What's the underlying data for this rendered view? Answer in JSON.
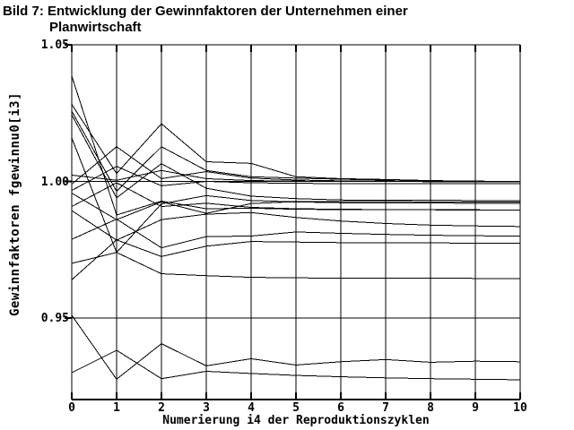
{
  "title": {
    "line1": "Bild 7: Entwicklung der Gewinnfaktoren der Unternehmen einer",
    "line2": "Planwirtschaft"
  },
  "colors": {
    "ink": "#000000",
    "background": "#ffffff"
  },
  "chart_data": {
    "type": "line",
    "title": "Bild 7: Entwicklung der Gewinnfaktoren der Unternehmen einer Planwirtschaft",
    "xlabel": "Numerierung i4 der Reproduktionszyklen",
    "ylabel": "Gewinnfaktoren fgewinnu0[i3]",
    "xlim": [
      0,
      10
    ],
    "ylim": [
      0.92,
      1.05
    ],
    "x": [
      0,
      1,
      2,
      3,
      4,
      5,
      6,
      7,
      8,
      9,
      10
    ],
    "x_tick_labels": [
      "0",
      "1",
      "2",
      "3",
      "4",
      "5",
      "6",
      "7",
      "8",
      "9",
      "10"
    ],
    "y_ticks": [
      {
        "value": 1.05,
        "label": "1.05"
      },
      {
        "value": 1.0,
        "label": "1.00"
      },
      {
        "value": 0.95,
        "label": "0.95"
      }
    ],
    "grid": "vertical gridline at every integer x; horizontal lines at y=1.00 and y=0.95; closed frame; no legend",
    "line_color": "#000000",
    "series": [
      {
        "name": "s1",
        "values": [
          1.0386,
          0.9877,
          0.9928,
          0.99,
          0.9902,
          0.9898,
          0.9897,
          0.9896,
          0.9896,
          0.9895,
          0.9895
        ]
      },
      {
        "name": "s2",
        "values": [
          1.0282,
          1.0029,
          1.0211,
          1.0072,
          1.0066,
          1.0017,
          1.001,
          1.0007,
          1.0003,
          1.0001,
          1.0
        ]
      },
      {
        "name": "s3",
        "values": [
          1.0257,
          0.9964,
          1.0127,
          1.004,
          1.0017,
          1.0012,
          1.0008,
          1.0005,
          1.0002,
          1.0,
          1.0
        ]
      },
      {
        "name": "s4",
        "values": [
          1.0244,
          0.994,
          1.0065,
          0.9975,
          0.9946,
          0.9937,
          0.9932,
          0.9931,
          0.9931,
          0.993,
          0.993
        ]
      },
      {
        "name": "s5",
        "values": [
          1.0159,
          0.974,
          0.9918,
          0.9948,
          0.993,
          0.9925,
          0.9922,
          0.9921,
          0.9921,
          0.992,
          0.992
        ]
      },
      {
        "name": "s6",
        "values": [
          1.0023,
          1.0004,
          1.004,
          1.001,
          1.0003,
          1.0001,
          1.0,
          1.0,
          0.9999,
          0.9999,
          0.9999
        ]
      },
      {
        "name": "s7",
        "values": [
          0.999,
          1.0127,
          1.001,
          1.0036,
          1.0012,
          1.0005,
          1.0002,
          1.0001,
          1.0,
          1.0,
          1.0
        ]
      },
      {
        "name": "s8",
        "values": [
          0.9967,
          1.0055,
          0.9984,
          1.0,
          0.9995,
          0.9993,
          0.9992,
          0.9992,
          0.9991,
          0.9991,
          0.9991
        ]
      },
      {
        "name": "s9",
        "values": [
          0.9957,
          0.986,
          0.9925,
          0.9883,
          0.9919,
          0.9926,
          0.9927,
          0.9926,
          0.9925,
          0.9925,
          0.9924
        ]
      },
      {
        "name": "s10",
        "values": [
          0.9908,
          0.9995,
          0.9908,
          0.992,
          0.9905,
          0.99,
          0.9898,
          0.9897,
          0.9896,
          0.9896,
          0.9895
        ]
      },
      {
        "name": "s11",
        "values": [
          0.9893,
          0.9785,
          0.986,
          0.988,
          0.9886,
          0.9868,
          0.9855,
          0.9846,
          0.984,
          0.9837,
          0.9835
        ]
      },
      {
        "name": "s12",
        "values": [
          0.9788,
          0.9862,
          0.9757,
          0.9798,
          0.98,
          0.9815,
          0.981,
          0.9806,
          0.9803,
          0.9801,
          0.98
        ]
      },
      {
        "name": "s13",
        "values": [
          0.97,
          0.974,
          0.9662,
          0.9655,
          0.9649,
          0.9647,
          0.9646,
          0.9646,
          0.9646,
          0.9645,
          0.9645
        ]
      },
      {
        "name": "s14",
        "values": [
          0.964,
          0.9786,
          0.9725,
          0.9763,
          0.978,
          0.9778,
          0.9776,
          0.9775,
          0.9775,
          0.9774,
          0.9773
        ]
      },
      {
        "name": "s15",
        "values": [
          0.951,
          0.9276,
          0.9406,
          0.9325,
          0.9351,
          0.9328,
          0.934,
          0.9348,
          0.9338,
          0.9342,
          0.934
        ]
      },
      {
        "name": "s16",
        "values": [
          0.93,
          0.9382,
          0.9278,
          0.9305,
          0.9297,
          0.929,
          0.9285,
          0.9281,
          0.9278,
          0.9276,
          0.9274
        ]
      }
    ]
  }
}
